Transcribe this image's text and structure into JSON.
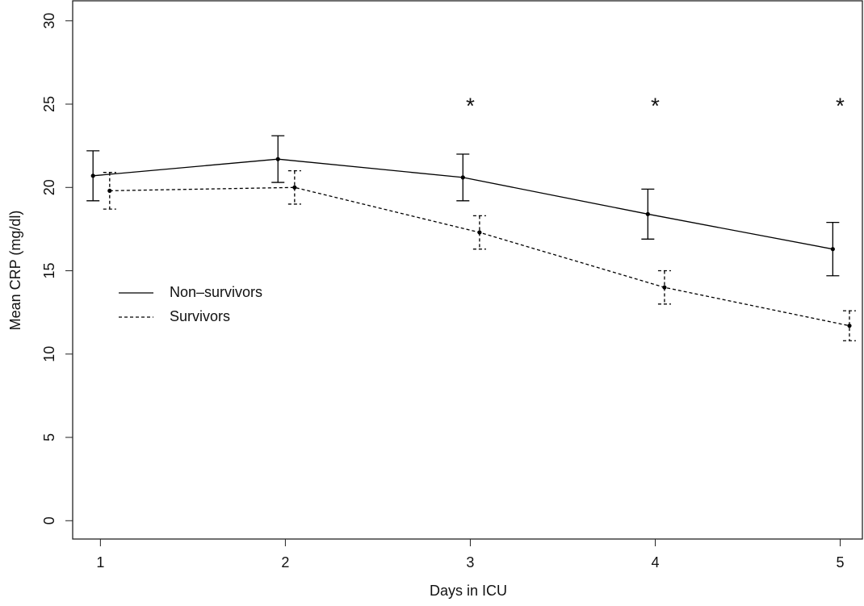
{
  "chart_data": {
    "type": "line",
    "x_label": "Days in ICU",
    "y_label": "Mean CRP (mg/dl)",
    "x": [
      1,
      2,
      3,
      4,
      5
    ],
    "series": [
      {
        "name": "Non–survivors",
        "color": "#000000",
        "dash": "solid",
        "values": [
          20.7,
          21.7,
          20.6,
          18.4,
          16.3
        ],
        "errors": [
          1.5,
          1.4,
          1.4,
          1.5,
          1.6
        ]
      },
      {
        "name": "Survivors",
        "color": "#000000",
        "dash": "dashed",
        "values": [
          19.8,
          20.0,
          17.3,
          14.0,
          11.7
        ],
        "errors": [
          1.1,
          1.0,
          1.0,
          1.0,
          0.9
        ]
      }
    ],
    "annotations": [
      {
        "text": "*",
        "x": 3,
        "y": 25
      },
      {
        "text": "*",
        "x": 4,
        "y": 25
      },
      {
        "text": "*",
        "x": 5,
        "y": 25
      }
    ],
    "xlim": [
      0.85,
      5.12
    ],
    "ylim": [
      -1.1,
      31.2
    ],
    "xticks": [
      1,
      2,
      3,
      4,
      5
    ],
    "yticks": [
      0,
      5,
      10,
      15,
      20,
      25,
      30
    ],
    "legend": "left",
    "grid": false
  }
}
